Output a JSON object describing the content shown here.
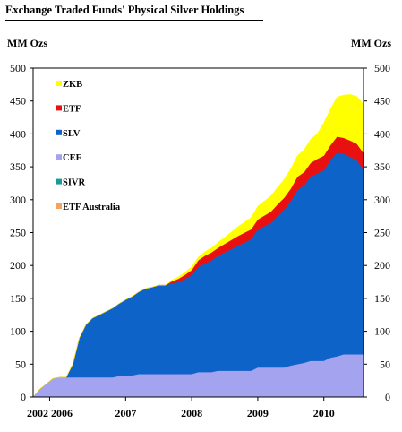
{
  "chart_data": {
    "type": "area",
    "stacked": true,
    "title": "Exchange Traded Funds' Physical Silver Holdings",
    "ylabel_left": "MM Ozs",
    "ylabel_right": "MM Ozs",
    "ylim": [
      0,
      500
    ],
    "yticks": [
      0,
      50,
      100,
      150,
      200,
      250,
      300,
      350,
      400,
      450,
      500
    ],
    "xlim": [
      0,
      100
    ],
    "xticks": [
      {
        "label": "2002 2006",
        "x": 5
      },
      {
        "label": "2007",
        "x": 28
      },
      {
        "label": "2008",
        "x": 48
      },
      {
        "label": "2009",
        "x": 68
      },
      {
        "label": "2010",
        "x": 88
      }
    ],
    "legend_position": "top-left",
    "x": [
      0,
      2,
      4,
      6,
      8,
      10,
      12,
      14,
      16,
      18,
      20,
      22,
      24,
      26,
      28,
      30,
      32,
      34,
      36,
      38,
      40,
      42,
      44,
      46,
      48,
      50,
      52,
      54,
      56,
      58,
      60,
      62,
      64,
      66,
      68,
      70,
      72,
      74,
      76,
      78,
      80,
      82,
      84,
      86,
      88,
      90,
      92,
      94,
      96,
      98,
      100
    ],
    "series": [
      {
        "name": "ETF Australia",
        "color": "#f4a460",
        "values": [
          0,
          0,
          0,
          0,
          0,
          0,
          0,
          0,
          0,
          0,
          0,
          0,
          0,
          0,
          0,
          0,
          0,
          0,
          0,
          0,
          0,
          0,
          0,
          0,
          0,
          0,
          0,
          0,
          0,
          0,
          0,
          0,
          0,
          0,
          0,
          0,
          0,
          0,
          0,
          0,
          0,
          0,
          0,
          0,
          0,
          0,
          0,
          0,
          0,
          0,
          0
        ]
      },
      {
        "name": "SIVR",
        "color": "#1a9a9a",
        "values": [
          0,
          0,
          0,
          0,
          0,
          0,
          0,
          0,
          0,
          0,
          0,
          0,
          0,
          0,
          0,
          0,
          0,
          0,
          0,
          0,
          0,
          0,
          0,
          0,
          0,
          0,
          0,
          0,
          0,
          0,
          0,
          0,
          0,
          0,
          0,
          0,
          0,
          0,
          0,
          0,
          0,
          0,
          0,
          0,
          0,
          0,
          0,
          0,
          0,
          0,
          0
        ]
      },
      {
        "name": "CEF",
        "color": "#a3a3f0",
        "values": [
          0,
          12,
          20,
          28,
          30,
          30,
          30,
          30,
          30,
          30,
          30,
          30,
          30,
          32,
          33,
          33,
          35,
          35,
          35,
          35,
          35,
          35,
          35,
          35,
          35,
          38,
          38,
          38,
          40,
          40,
          40,
          40,
          40,
          40,
          45,
          45,
          45,
          45,
          45,
          48,
          50,
          52,
          55,
          55,
          55,
          60,
          62,
          65,
          65,
          65,
          65
        ]
      },
      {
        "name": "SLV",
        "color": "#0e63c8",
        "values": [
          0,
          0,
          0,
          0,
          0,
          0,
          20,
          60,
          80,
          90,
          95,
          100,
          105,
          110,
          115,
          120,
          125,
          130,
          132,
          135,
          135,
          138,
          140,
          145,
          150,
          160,
          165,
          170,
          175,
          180,
          185,
          190,
          195,
          200,
          210,
          215,
          220,
          230,
          240,
          250,
          265,
          270,
          280,
          285,
          290,
          300,
          310,
          305,
          300,
          295,
          280
        ]
      },
      {
        "name": "ETF",
        "color": "#e81010",
        "values": [
          0,
          0,
          0,
          0,
          0,
          0,
          0,
          0,
          0,
          0,
          0,
          0,
          0,
          0,
          0,
          0,
          0,
          0,
          0,
          0,
          0,
          3,
          5,
          6,
          8,
          10,
          12,
          12,
          12,
          13,
          14,
          15,
          15,
          15,
          15,
          16,
          17,
          18,
          18,
          19,
          20,
          20,
          21,
          22,
          22,
          23,
          24,
          24,
          25,
          25,
          26
        ]
      },
      {
        "name": "ZKB",
        "color": "#ffff00",
        "values": [
          0,
          0,
          0,
          0,
          0,
          0,
          0,
          0,
          0,
          0,
          0,
          0,
          0,
          0,
          0,
          0,
          0,
          0,
          0,
          0,
          0,
          2,
          3,
          4,
          5,
          5,
          6,
          7,
          8,
          10,
          12,
          14,
          16,
          18,
          20,
          22,
          24,
          26,
          28,
          30,
          32,
          34,
          36,
          38,
          50,
          55,
          60,
          65,
          70,
          72,
          74
        ]
      }
    ]
  },
  "legend": [
    {
      "name": "ZKB",
      "color": "#ffff00"
    },
    {
      "name": "ETF",
      "color": "#e81010"
    },
    {
      "name": "SLV",
      "color": "#0e63c8"
    },
    {
      "name": "CEF",
      "color": "#a3a3f0"
    },
    {
      "name": "SIVR",
      "color": "#1a9a9a"
    },
    {
      "name": "ETF Australia",
      "color": "#f4a460"
    }
  ]
}
